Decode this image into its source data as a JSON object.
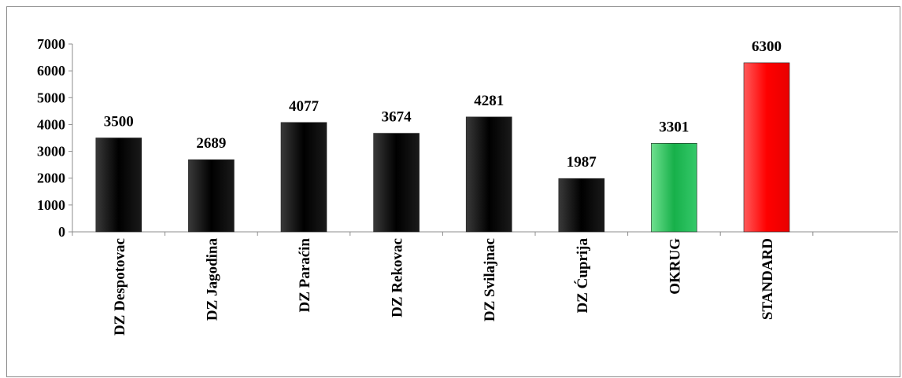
{
  "chart_data": {
    "type": "bar",
    "categories": [
      "DZ Despotovac",
      "DZ Jagodina",
      "DZ Paraćin",
      "DZ Rekovac",
      "DZ Svilajnac",
      "DZ Ćuprija",
      "OKRUG",
      "STANDARD"
    ],
    "values": [
      3500,
      2689,
      4077,
      3674,
      4281,
      1987,
      3301,
      6300
    ],
    "data_labels": [
      "3500",
      "2689",
      "4077",
      "3674",
      "4281",
      "1987",
      "3301",
      "6300"
    ],
    "bar_colors": [
      "#000000",
      "#000000",
      "#000000",
      "#000000",
      "#000000",
      "#000000",
      "#1db954",
      "#ff0000"
    ],
    "ylim": [
      0,
      7000
    ],
    "yticks": [
      0,
      1000,
      2000,
      3000,
      4000,
      5000,
      6000,
      7000
    ],
    "ytick_labels": [
      "0",
      "1000",
      "2000",
      "3000",
      "4000",
      "5000",
      "6000",
      "7000"
    ],
    "grid": false,
    "legend": "none"
  }
}
